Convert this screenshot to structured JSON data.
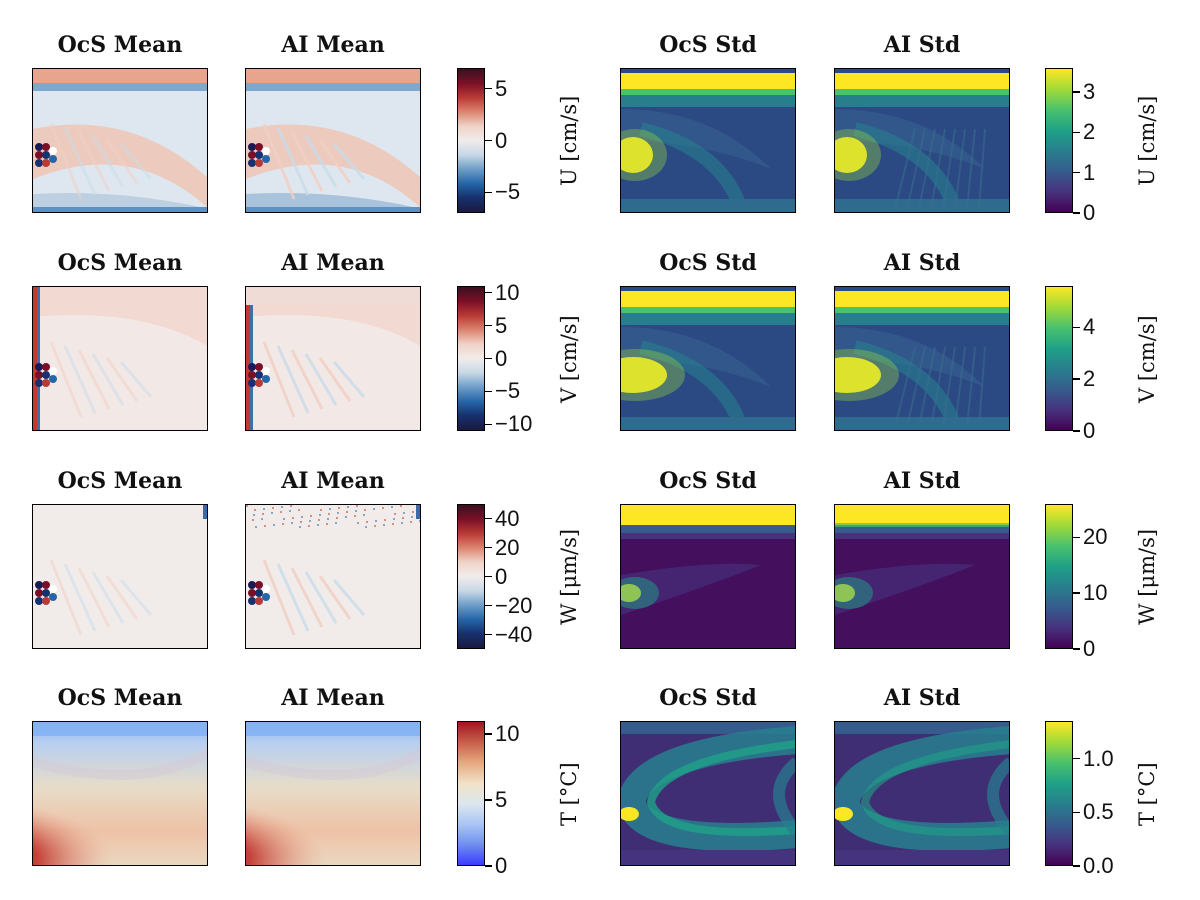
{
  "chart_data": {
    "type": "heatmap",
    "rows": [
      {
        "variable": "U",
        "panels": [
          "OcS Mean",
          "AI Mean",
          "OcS Std",
          "AI Std"
        ],
        "mean_colorbar": {
          "label": "U [cm/s]",
          "range": [
            -7,
            7
          ],
          "ticks": [
            -5,
            0,
            5
          ],
          "tick_labels": [
            "−5",
            "0",
            "5"
          ],
          "colormap": "balance"
        },
        "std_colorbar": {
          "label": "U [cm/s]",
          "range": [
            0,
            3.6
          ],
          "ticks": [
            0,
            1,
            2,
            3
          ],
          "tick_labels": [
            "0",
            "1",
            "2",
            "3"
          ],
          "colormap": "viridis"
        }
      },
      {
        "variable": "V",
        "panels": [
          "OcS Mean",
          "AI Mean",
          "OcS Std",
          "AI Std"
        ],
        "mean_colorbar": {
          "label": "V [cm/s]",
          "range": [
            -11,
            11
          ],
          "ticks": [
            -10,
            -5,
            0,
            5,
            10
          ],
          "tick_labels": [
            "−10",
            "−5",
            "0",
            "5",
            "10"
          ],
          "colormap": "balance"
        },
        "std_colorbar": {
          "label": "V [cm/s]",
          "range": [
            0,
            5.6
          ],
          "ticks": [
            0,
            2,
            4
          ],
          "tick_labels": [
            "0",
            "2",
            "4"
          ],
          "colormap": "viridis"
        }
      },
      {
        "variable": "W",
        "panels": [
          "OcS Mean",
          "AI Mean",
          "OcS Std",
          "AI Std"
        ],
        "mean_colorbar": {
          "label": "W [μm/s]",
          "range": [
            -50,
            50
          ],
          "ticks": [
            -40,
            -20,
            0,
            20,
            40
          ],
          "tick_labels": [
            "−40",
            "−20",
            "0",
            "20",
            "40"
          ],
          "colormap": "balance"
        },
        "std_colorbar": {
          "label": "W [μm/s]",
          "range": [
            0,
            26
          ],
          "ticks": [
            0,
            10,
            20
          ],
          "tick_labels": [
            "0",
            "10",
            "20"
          ],
          "colormap": "viridis"
        }
      },
      {
        "variable": "T",
        "panels": [
          "OcS Mean",
          "AI Mean",
          "OcS Std",
          "AI Std"
        ],
        "mean_colorbar": {
          "label": "T [°C]",
          "range": [
            0,
            11
          ],
          "ticks": [
            0,
            5,
            10
          ],
          "tick_labels": [
            "0",
            "5",
            "10"
          ],
          "colormap": "coolwarm"
        },
        "std_colorbar": {
          "label": "T [°C]",
          "range": [
            0,
            1.35
          ],
          "ticks": [
            0.0,
            0.5,
            1.0
          ],
          "tick_labels": [
            "0.0",
            "0.5",
            "1.0"
          ],
          "colormap": "viridis"
        }
      }
    ]
  }
}
